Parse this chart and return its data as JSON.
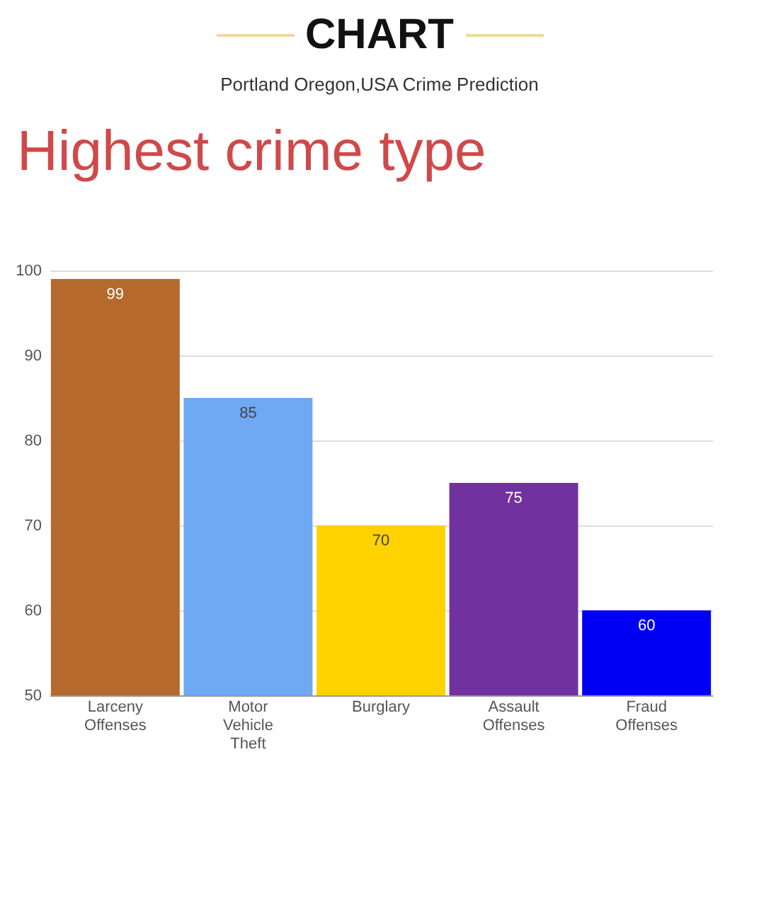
{
  "chart_data": {
    "type": "bar",
    "title": "CHART",
    "subtitle": "Portland Oregon,USA Crime Prediction",
    "annotations": [
      "Highest crime type"
    ],
    "categories": [
      "Larceny Offenses",
      "Motor Vehicle Theft",
      "Burglary",
      "Assault Offenses",
      "Fraud Offenses"
    ],
    "values": [
      99,
      85,
      70,
      75,
      60
    ],
    "colors": [
      "#b5692c",
      "#6fa8f3",
      "#ffd200",
      "#7132a0",
      "#0000f5"
    ],
    "ylim": [
      50,
      100
    ],
    "yticks": [
      50,
      60,
      70,
      80,
      90,
      100
    ],
    "grid": "y",
    "data_labels": true
  }
}
